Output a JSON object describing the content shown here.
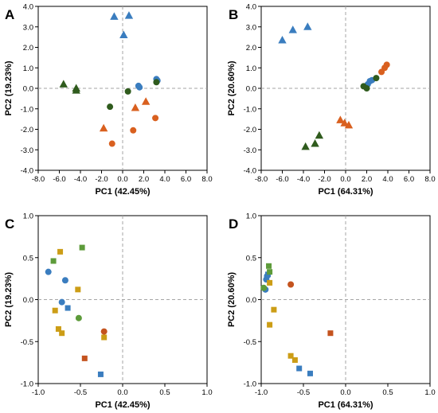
{
  "colors": {
    "blue": "#3a7dbf",
    "orange": "#d9601f",
    "darkgreen": "#2f5b1d",
    "gold": "#cc9d16",
    "lightgreen": "#5d9b3a",
    "rust": "#c4531e"
  },
  "chart_data": [
    {
      "type": "scatter",
      "panel": "A",
      "xlabel": "PC1 (42.45%)",
      "ylabel": "PC2 (19.23%)",
      "xlim": [
        -8,
        8
      ],
      "ylim": [
        -4,
        4
      ],
      "xticks": [
        -8,
        -6,
        -4,
        -2,
        0,
        2,
        4,
        6,
        8
      ],
      "yticks": [
        -4,
        -3,
        -2,
        -1,
        0,
        1,
        2,
        3,
        4
      ],
      "tick_decimals": 1,
      "reference_lines": {
        "x": 0,
        "y": 0,
        "style": "dashed"
      },
      "series": [
        {
          "color": "blue",
          "marker": "triangle",
          "points": [
            [
              -0.8,
              3.5
            ],
            [
              0.6,
              3.55
            ],
            [
              0.1,
              2.6
            ]
          ]
        },
        {
          "color": "blue",
          "marker": "circle",
          "points": [
            [
              1.5,
              0.12
            ],
            [
              1.6,
              0.05
            ],
            [
              3.2,
              0.45
            ],
            [
              3.3,
              0.38
            ]
          ]
        },
        {
          "color": "orange",
          "marker": "triangle",
          "points": [
            [
              1.2,
              -0.95
            ],
            [
              2.2,
              -0.65
            ],
            [
              -1.8,
              -1.95
            ]
          ]
        },
        {
          "color": "orange",
          "marker": "circle",
          "points": [
            [
              3.1,
              -1.45
            ],
            [
              1.0,
              -2.05
            ],
            [
              -1.0,
              -2.7
            ]
          ]
        },
        {
          "color": "darkgreen",
          "marker": "triangle",
          "points": [
            [
              -5.6,
              0.2
            ],
            [
              -4.4,
              0.0
            ],
            [
              -4.4,
              -0.1
            ]
          ]
        },
        {
          "color": "darkgreen",
          "marker": "circle",
          "points": [
            [
              -1.2,
              -0.9
            ],
            [
              0.5,
              -0.15
            ],
            [
              3.2,
              0.3
            ]
          ]
        }
      ]
    },
    {
      "type": "scatter",
      "panel": "B",
      "xlabel": "PC1 (64.31%)",
      "ylabel": "PC2 (20.60%)",
      "xlim": [
        -8,
        8
      ],
      "ylim": [
        -4,
        4
      ],
      "xticks": [
        -8,
        -6,
        -4,
        -2,
        0,
        2,
        4,
        6,
        8
      ],
      "yticks": [
        -4,
        -3,
        -2,
        -1,
        0,
        1,
        2,
        3,
        4
      ],
      "tick_decimals": 1,
      "reference_lines": {
        "x": 0,
        "y": 0,
        "style": "dashed"
      },
      "series": [
        {
          "color": "blue",
          "marker": "triangle",
          "points": [
            [
              -6.0,
              2.35
            ],
            [
              -5.0,
              2.85
            ],
            [
              -3.6,
              3.0
            ]
          ]
        },
        {
          "color": "blue",
          "marker": "circle",
          "points": [
            [
              2.1,
              0.2
            ],
            [
              2.3,
              0.35
            ],
            [
              2.5,
              0.4
            ]
          ]
        },
        {
          "color": "orange",
          "marker": "triangle",
          "points": [
            [
              -0.5,
              -1.55
            ],
            [
              -0.1,
              -1.7
            ],
            [
              0.3,
              -1.8
            ]
          ]
        },
        {
          "color": "orange",
          "marker": "circle",
          "points": [
            [
              3.4,
              0.8
            ],
            [
              3.7,
              1.0
            ],
            [
              3.9,
              1.15
            ]
          ]
        },
        {
          "color": "darkgreen",
          "marker": "triangle",
          "points": [
            [
              -3.8,
              -2.85
            ],
            [
              -2.9,
              -2.7
            ],
            [
              -2.5,
              -2.3
            ]
          ]
        },
        {
          "color": "darkgreen",
          "marker": "circle",
          "points": [
            [
              1.7,
              0.1
            ],
            [
              2.0,
              0.0
            ],
            [
              2.9,
              0.5
            ]
          ]
        }
      ]
    },
    {
      "type": "scatter",
      "panel": "C",
      "xlabel": "PC1 (42.45%)",
      "ylabel": "PC2 (19.23%)",
      "xlim": [
        -1,
        1
      ],
      "ylim": [
        -1,
        1
      ],
      "xticks": [
        -1.0,
        -0.5,
        0.0,
        0.5,
        1.0
      ],
      "yticks": [
        -1.0,
        -0.5,
        0.0,
        0.5,
        1.0
      ],
      "tick_decimals": 1,
      "reference_lines": {
        "x": 0,
        "y": 0,
        "style": "dashed"
      },
      "series": [
        {
          "color": "blue",
          "marker": "circle",
          "points": [
            [
              -0.88,
              0.33
            ],
            [
              -0.68,
              0.23
            ],
            [
              -0.72,
              -0.03
            ]
          ]
        },
        {
          "color": "blue",
          "marker": "square",
          "points": [
            [
              -0.65,
              -0.1
            ],
            [
              -0.26,
              -0.89
            ]
          ]
        },
        {
          "color": "lightgreen",
          "marker": "square",
          "points": [
            [
              -0.82,
              0.46
            ],
            [
              -0.48,
              0.62
            ]
          ]
        },
        {
          "color": "lightgreen",
          "marker": "circle",
          "points": [
            [
              -0.52,
              -0.22
            ]
          ]
        },
        {
          "color": "gold",
          "marker": "square",
          "points": [
            [
              -0.74,
              0.57
            ],
            [
              -0.53,
              0.12
            ],
            [
              -0.8,
              -0.13
            ],
            [
              -0.76,
              -0.35
            ],
            [
              -0.72,
              -0.4
            ],
            [
              -0.22,
              -0.45
            ]
          ]
        },
        {
          "color": "rust",
          "marker": "circle",
          "points": [
            [
              -0.22,
              -0.38
            ]
          ]
        },
        {
          "color": "rust",
          "marker": "square",
          "points": [
            [
              -0.45,
              -0.7
            ]
          ]
        }
      ]
    },
    {
      "type": "scatter",
      "panel": "D",
      "xlabel": "PC1 (64.31%)",
      "ylabel": "PC2 (20.60%)",
      "xlim": [
        -1,
        1
      ],
      "ylim": [
        -1,
        1
      ],
      "xticks": [
        -1.0,
        -0.5,
        0.0,
        0.5,
        1.0
      ],
      "yticks": [
        -1.0,
        -0.5,
        0.0,
        0.5,
        1.0
      ],
      "tick_decimals": 1,
      "reference_lines": {
        "x": 0,
        "y": 0,
        "style": "dashed"
      },
      "series": [
        {
          "color": "blue",
          "marker": "circle",
          "points": [
            [
              -0.95,
              0.12
            ],
            [
              -0.94,
              0.24
            ],
            [
              -0.93,
              0.28
            ]
          ]
        },
        {
          "color": "blue",
          "marker": "square",
          "points": [
            [
              -0.92,
              0.3
            ],
            [
              -0.55,
              -0.82
            ],
            [
              -0.42,
              -0.88
            ]
          ]
        },
        {
          "color": "lightgreen",
          "marker": "square",
          "points": [
            [
              -0.91,
              0.4
            ],
            [
              -0.9,
              0.33
            ]
          ]
        },
        {
          "color": "lightgreen",
          "marker": "circle",
          "points": [
            [
              -0.97,
              0.14
            ]
          ]
        },
        {
          "color": "gold",
          "marker": "square",
          "points": [
            [
              -0.9,
              0.2
            ],
            [
              -0.85,
              -0.12
            ],
            [
              -0.9,
              -0.3
            ],
            [
              -0.65,
              -0.67
            ],
            [
              -0.6,
              -0.72
            ]
          ]
        },
        {
          "color": "rust",
          "marker": "circle",
          "points": [
            [
              -0.65,
              0.18
            ]
          ]
        },
        {
          "color": "rust",
          "marker": "square",
          "points": [
            [
              -0.18,
              -0.4
            ]
          ]
        }
      ]
    }
  ]
}
